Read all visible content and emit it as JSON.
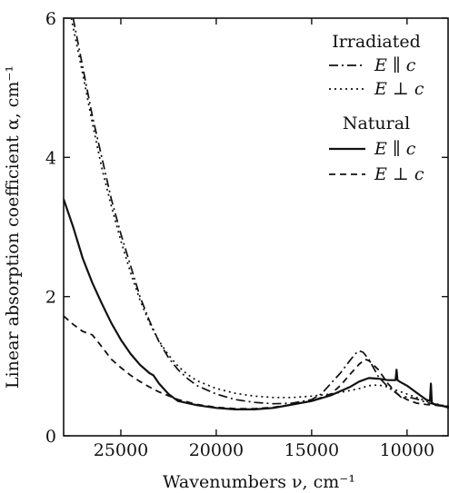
{
  "chart_data": {
    "type": "line",
    "title": "",
    "xlabel": "Wavenumbers ν, cm⁻¹",
    "ylabel": "Linear absorption coefficient α, cm⁻¹",
    "xlim": [
      28000,
      7800
    ],
    "ylim": [
      0,
      6
    ],
    "x_reversed": true,
    "grid": false,
    "legend_placement": "top-right",
    "x_ticks": [
      {
        "value": 25000,
        "label": "25000"
      },
      {
        "value": 20000,
        "label": "20000"
      },
      {
        "value": 15000,
        "label": "15000"
      },
      {
        "value": 10000,
        "label": "10000"
      }
    ],
    "y_ticks": [
      {
        "value": 0,
        "label": "0"
      },
      {
        "value": 2,
        "label": "2"
      },
      {
        "value": 4,
        "label": "4"
      },
      {
        "value": 6,
        "label": "6"
      }
    ],
    "legend_groups": [
      {
        "title": "Irradiated",
        "entries": [
          {
            "label": "E ∥ c",
            "series": 0
          },
          {
            "label": "E ⊥ c",
            "series": 1
          }
        ]
      },
      {
        "title": "Natural",
        "entries": [
          {
            "label": "E ∥ c",
            "series": 2
          },
          {
            "label": "E ⊥ c",
            "series": 3
          }
        ]
      }
    ],
    "series": [
      {
        "group": "Irradiated",
        "polarization": "parallel",
        "dash": "10,4,2,4",
        "width": 1.7,
        "x": [
          27500,
          27000,
          26500,
          26000,
          25500,
          25000,
          24500,
          24000,
          23500,
          23000,
          22500,
          22000,
          21500,
          21000,
          20000,
          19000,
          18000,
          17000,
          16000,
          15000,
          14500,
          14000,
          13500,
          13000,
          12700,
          12500,
          12300,
          12000,
          11700,
          11500,
          11000,
          10500,
          10300,
          10000,
          9500,
          9000,
          8500,
          8000,
          7800
        ],
        "y": [
          6.0,
          5.3,
          4.6,
          4.0,
          3.4,
          2.9,
          2.45,
          2.0,
          1.65,
          1.35,
          1.12,
          0.95,
          0.82,
          0.72,
          0.6,
          0.52,
          0.48,
          0.46,
          0.47,
          0.52,
          0.6,
          0.75,
          0.9,
          1.08,
          1.18,
          1.22,
          1.2,
          1.1,
          0.95,
          0.85,
          0.7,
          0.6,
          0.55,
          0.56,
          0.53,
          0.48,
          0.45,
          0.43,
          0.42
        ]
      },
      {
        "group": "Irradiated",
        "polarization": "perpendicular",
        "dash": "2,4",
        "width": 1.7,
        "x": [
          27600,
          27000,
          26500,
          26000,
          25500,
          25000,
          24500,
          24000,
          23500,
          23000,
          22500,
          22000,
          21500,
          21000,
          20000,
          19000,
          18000,
          17000,
          16000,
          15000,
          14000,
          13000,
          12500,
          12000,
          11500,
          11000,
          10500,
          10000,
          9500,
          9000,
          8500,
          8000,
          7800
        ],
        "y": [
          6.0,
          5.2,
          4.5,
          3.85,
          3.3,
          2.8,
          2.35,
          1.95,
          1.62,
          1.36,
          1.16,
          1.0,
          0.88,
          0.79,
          0.68,
          0.61,
          0.57,
          0.55,
          0.55,
          0.57,
          0.6,
          0.65,
          0.68,
          0.72,
          0.73,
          0.7,
          0.65,
          0.6,
          0.55,
          0.5,
          0.46,
          0.43,
          0.42
        ]
      },
      {
        "group": "Natural",
        "polarization": "parallel",
        "dash": "",
        "width": 2.2,
        "x": [
          28000,
          27500,
          27000,
          26500,
          26000,
          25500,
          25000,
          24500,
          24000,
          23500,
          23300,
          23000,
          22500,
          22000,
          21000,
          20000,
          19000,
          18000,
          17000,
          16000,
          15000,
          14000,
          13000,
          12500,
          12000,
          11500,
          11000,
          10600,
          10550,
          10500,
          10450,
          10400,
          10000,
          9500,
          9000,
          8800,
          8750,
          8700,
          8650,
          8500,
          8000,
          7800
        ],
        "y": [
          3.4,
          3.0,
          2.55,
          2.2,
          1.9,
          1.62,
          1.38,
          1.18,
          1.02,
          0.9,
          0.87,
          0.75,
          0.6,
          0.5,
          0.44,
          0.4,
          0.38,
          0.38,
          0.4,
          0.45,
          0.5,
          0.58,
          0.7,
          0.78,
          0.83,
          0.82,
          0.8,
          0.8,
          0.95,
          0.8,
          0.79,
          0.78,
          0.72,
          0.62,
          0.52,
          0.5,
          0.75,
          0.48,
          0.46,
          0.45,
          0.42,
          0.4
        ]
      },
      {
        "group": "Natural",
        "polarization": "perpendicular",
        "dash": "7,5",
        "width": 1.8,
        "x": [
          28000,
          27500,
          27000,
          26500,
          26000,
          25500,
          25000,
          24500,
          24000,
          23500,
          23000,
          22000,
          21000,
          20000,
          19000,
          18000,
          17000,
          16000,
          15000,
          14000,
          13500,
          13000,
          12500,
          12200,
          12000,
          11500,
          11000,
          10500,
          10000,
          9500,
          9000,
          8500,
          8000,
          7800
        ],
        "y": [
          1.72,
          1.6,
          1.5,
          1.45,
          1.28,
          1.1,
          0.98,
          0.87,
          0.78,
          0.7,
          0.63,
          0.52,
          0.45,
          0.41,
          0.39,
          0.39,
          0.41,
          0.45,
          0.5,
          0.6,
          0.72,
          0.88,
          1.03,
          1.1,
          1.08,
          0.95,
          0.75,
          0.6,
          0.52,
          0.47,
          0.45,
          0.44,
          0.42,
          0.41
        ]
      }
    ]
  }
}
